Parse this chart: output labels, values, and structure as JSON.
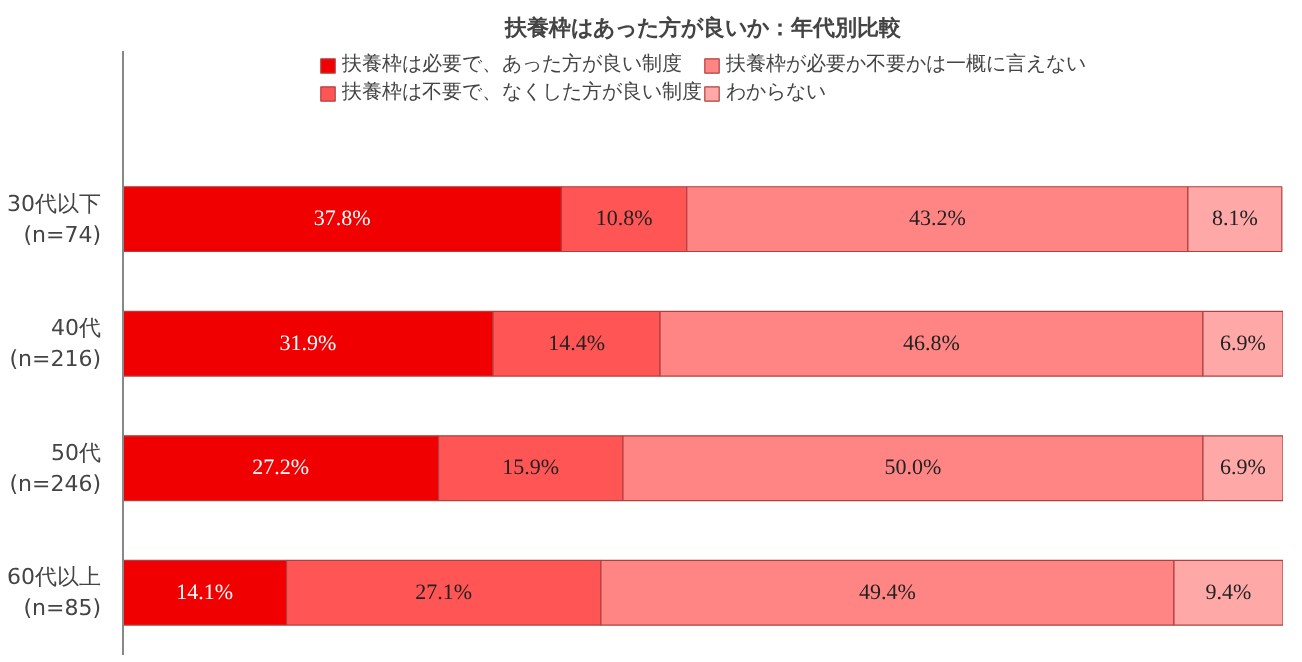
{
  "chart_data": {
    "type": "bar",
    "orientation": "horizontal",
    "stacked": true,
    "title": "扶養枠はあった方が良いか：年代別比較",
    "legend": "top",
    "categories": [
      "30代以下\n(n=74)",
      "40代\n(n=216)",
      "50代\n(n=246)",
      "60代以上\n(n=85)"
    ],
    "series": [
      {
        "name": "扶養枠は必要で、あった方が良い制度",
        "color": "#f00000",
        "values": [
          37.8,
          31.9,
          27.2,
          14.1
        ],
        "value_labels": [
          "37.8%",
          "31.9%",
          "27.2%",
          "14.1%"
        ]
      },
      {
        "name": "扶養枠は不要で、なくした方が良い制度",
        "color": "#ff5555",
        "values": [
          10.8,
          14.4,
          15.9,
          27.1
        ],
        "value_labels": [
          "10.8%",
          "14.4%",
          "15.9%",
          "27.1%"
        ]
      },
      {
        "name": "扶養枠が必要か不要かは一概に言えない",
        "color": "#ff8585",
        "values": [
          43.2,
          46.8,
          50.0,
          49.4
        ],
        "value_labels": [
          "43.2%",
          "46.8%",
          "50.0%",
          "49.4%"
        ]
      },
      {
        "name": "わからない",
        "color": "#ffa8a8",
        "values": [
          8.1,
          6.9,
          6.9,
          9.4
        ],
        "value_labels": [
          "8.1%",
          "6.9%",
          "6.9%",
          "9.4%"
        ]
      }
    ]
  }
}
